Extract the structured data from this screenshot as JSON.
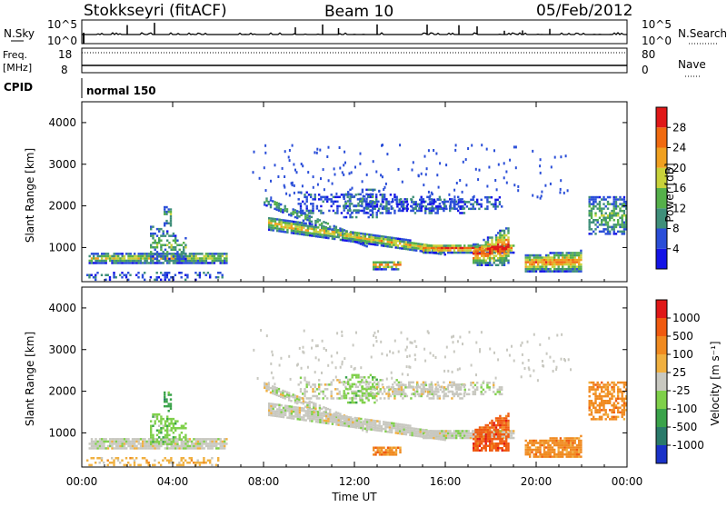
{
  "header": {
    "station": "Stokkseyri (fitACF)",
    "beam": "Beam 10",
    "date": "05/Feb/2012"
  },
  "summary": {
    "nsky_label": "N.Sky",
    "nsky_ticks": [
      "10^5",
      "10^0"
    ],
    "nsearch_label": "N.Search",
    "nsearch_ticks": [
      "10^5",
      "10^0"
    ],
    "freq_label": "Freq.",
    "freq_unit": "[MHz]",
    "freq_ticks": [
      "18",
      "8"
    ],
    "nave_label": "Nave",
    "nave_ticks": [
      "80",
      "0"
    ],
    "cpid_label": "CPID",
    "cpid_value": "normal 150"
  },
  "chart_data": [
    {
      "type": "heatmap",
      "name": "power",
      "ylabel": "Slant Range [km]",
      "xlabel": "",
      "yticks": [
        "1000",
        "2000",
        "3000",
        "4000"
      ],
      "ylim": [
        180,
        4500
      ],
      "xlim": [
        0,
        24
      ],
      "colorbar": {
        "label": "Power [dB]",
        "ticks": [
          "4",
          "8",
          "12",
          "16",
          "20",
          "24",
          "28"
        ],
        "colors": [
          "#1414e6",
          "#2a4ed8",
          "#3f8f7a",
          "#55b04a",
          "#c8d23a",
          "#f0a020",
          "#f06a10",
          "#e01818"
        ]
      }
    },
    {
      "type": "heatmap",
      "name": "velocity",
      "ylabel": "Slant Range [km]",
      "xlabel": "Time UT",
      "xticks": [
        "00:00",
        "04:00",
        "08:00",
        "12:00",
        "16:00",
        "20:00",
        "00:00"
      ],
      "yticks": [
        "1000",
        "2000",
        "3000",
        "4000"
      ],
      "ylim": [
        180,
        4500
      ],
      "xlim": [
        0,
        24
      ],
      "colorbar": {
        "label": "Velocity [m s⁻¹]",
        "ticks": [
          "1000",
          "500",
          "100",
          "25",
          "-25",
          "-100",
          "-500",
          "-1000"
        ],
        "colors": [
          "#1a32c8",
          "#2a7a6a",
          "#3aa34a",
          "#7fd04a",
          "#c8c8c0",
          "#f0b040",
          "#f08a20",
          "#f05a10",
          "#e01818"
        ]
      }
    }
  ]
}
